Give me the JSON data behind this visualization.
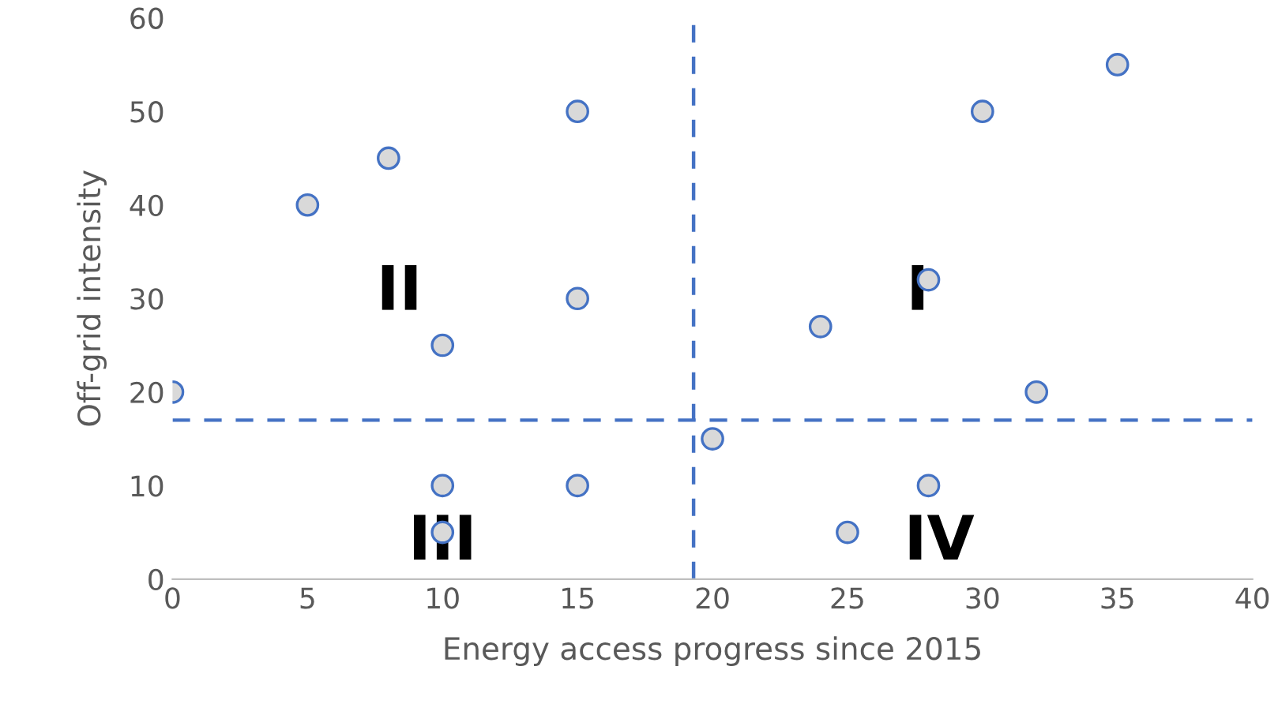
{
  "chart_data": {
    "type": "scatter",
    "xlabel": "Energy access progress since 2015",
    "ylabel": "Off-grid intensity",
    "x": [
      0,
      5,
      8,
      10,
      10,
      10,
      15,
      15,
      15,
      20,
      24,
      25,
      28,
      28,
      30,
      32,
      35
    ],
    "series": [
      {
        "color": "#d9d9d9",
        "values": [
          20,
          40,
          45,
          25,
          10,
          5,
          50,
          30,
          10,
          15,
          27,
          5,
          32,
          10,
          50,
          20,
          55
        ]
      }
    ],
    "marker": "circle",
    "xlim": [
      0,
      40
    ],
    "xticks": [
      0,
      5,
      10,
      15,
      20,
      25,
      30,
      35,
      40
    ],
    "ylim": [
      0,
      60
    ],
    "yticks": [
      0,
      10,
      20,
      30,
      40,
      50,
      60
    ],
    "grid": false,
    "ref_lines": [
      {
        "axis": "x",
        "value": 19.3,
        "color": "#4472c4",
        "line_style": "dashed"
      },
      {
        "axis": "y",
        "value": 17,
        "color": "#4472c4",
        "line_style": "dashed"
      }
    ],
    "annotations": [
      "II",
      "I",
      "III",
      "IV"
    ]
  }
}
